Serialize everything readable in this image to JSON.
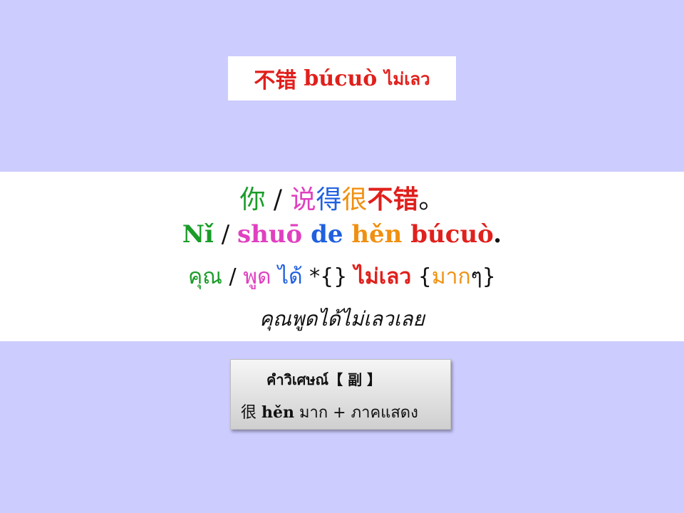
{
  "title": {
    "chinese": "不错",
    "pinyin": "búcuò",
    "thai": "ไม่เลว"
  },
  "sentence": {
    "chinese": {
      "w1": "你",
      "sep": " / ",
      "w2": "说",
      "w3": "得",
      "w4": "很",
      "w5": "不错",
      "end": "。"
    },
    "pinyin": {
      "w1": "Nǐ",
      "sep": " / ",
      "w2": "shuō",
      "w3": "de",
      "w4": "hěn",
      "w5": "búcuò",
      "end": "."
    },
    "thai": {
      "w1": "คุณ",
      "sep": " / ",
      "w2": "พูด",
      "w3": "ได้",
      "w4": "*{}",
      "w5": "ไม่เลว",
      "open": "{",
      "w6": "มาก",
      "close": "ๆ}"
    },
    "translation": "คุณพูดได้ไม่เลวเลย"
  },
  "note": {
    "title": "คำวิเศษณ์【 副 】",
    "chinese": "很",
    "pinyin": "hěn",
    "thai": "มาก + ภาคแสดง"
  },
  "colors": {
    "background": "#ccccff",
    "green": "#1a9c28",
    "pink": "#e040c0",
    "blue": "#2060e0",
    "orange": "#f09010",
    "red": "#e0201c"
  }
}
